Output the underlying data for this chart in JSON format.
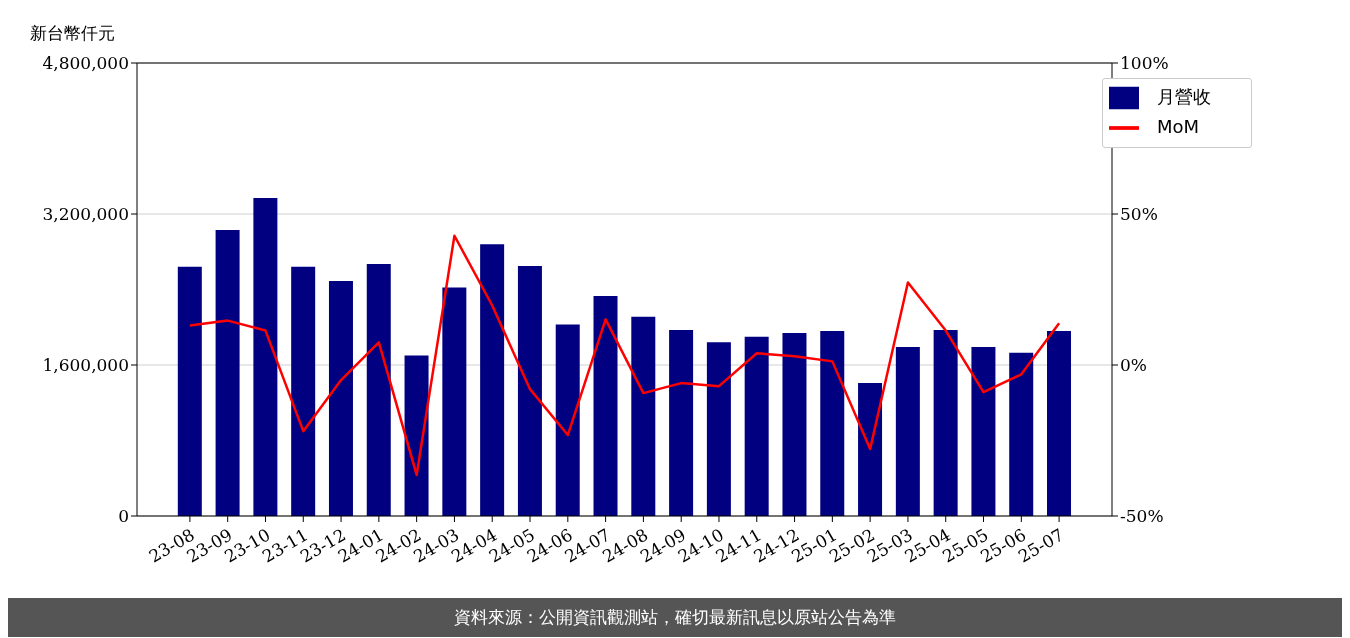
{
  "chart_data": {
    "type": "bar",
    "ylabel": "新台幣仟元",
    "categories": [
      "23-08",
      "23-09",
      "23-10",
      "23-11",
      "23-12",
      "24-01",
      "24-02",
      "24-03",
      "24-04",
      "24-05",
      "24-06",
      "24-07",
      "24-08",
      "24-09",
      "24-10",
      "24-11",
      "24-12",
      "25-01",
      "25-02",
      "25-03",
      "25-04",
      "25-05",
      "25-06",
      "25-07"
    ],
    "series": [
      {
        "name": "月營收",
        "color": "#000080",
        "values": [
          2640000,
          3030000,
          3370000,
          2640000,
          2490000,
          2670000,
          1700000,
          2420000,
          2880000,
          2650000,
          2030000,
          2330000,
          2110000,
          1970000,
          1840000,
          1900000,
          1940000,
          1960000,
          1410000,
          1790000,
          1970000,
          1790000,
          1730000,
          1960000
        ]
      },
      {
        "name": "MoM",
        "type": "line",
        "axis": "y2",
        "color": "#ff0000",
        "values": [
          13.1,
          14.7,
          11.4,
          -21.9,
          -5.0,
          7.5,
          -36.4,
          42.8,
          19.7,
          -8.0,
          -23.2,
          15.1,
          -9.3,
          -6.0,
          -7.0,
          3.9,
          2.9,
          1.2,
          -27.8,
          27.3,
          11.4,
          -9.0,
          -3.1,
          13.8
        ]
      }
    ],
    "ylim": [
      0,
      4800000
    ],
    "yticks": [
      {
        "value": 0,
        "label": "0"
      },
      {
        "value": 1600000,
        "label": "1,600,000"
      },
      {
        "value": 3200000,
        "label": "3,200,000"
      },
      {
        "value": 4800000,
        "label": "4,800,000"
      }
    ],
    "y2lim": [
      -50,
      100
    ],
    "y2ticks": [
      {
        "value": -50,
        "label": "-50%"
      },
      {
        "value": 0,
        "label": "0%"
      },
      {
        "value": 50,
        "label": "50%"
      },
      {
        "value": 100,
        "label": "100%"
      }
    ],
    "grid": "y",
    "legend": "top right",
    "marker": "none",
    "line_style": "solid",
    "annotations": [
      "資料來源：公開資訊觀測站，確切最新訊息以原站公告為準"
    ]
  }
}
